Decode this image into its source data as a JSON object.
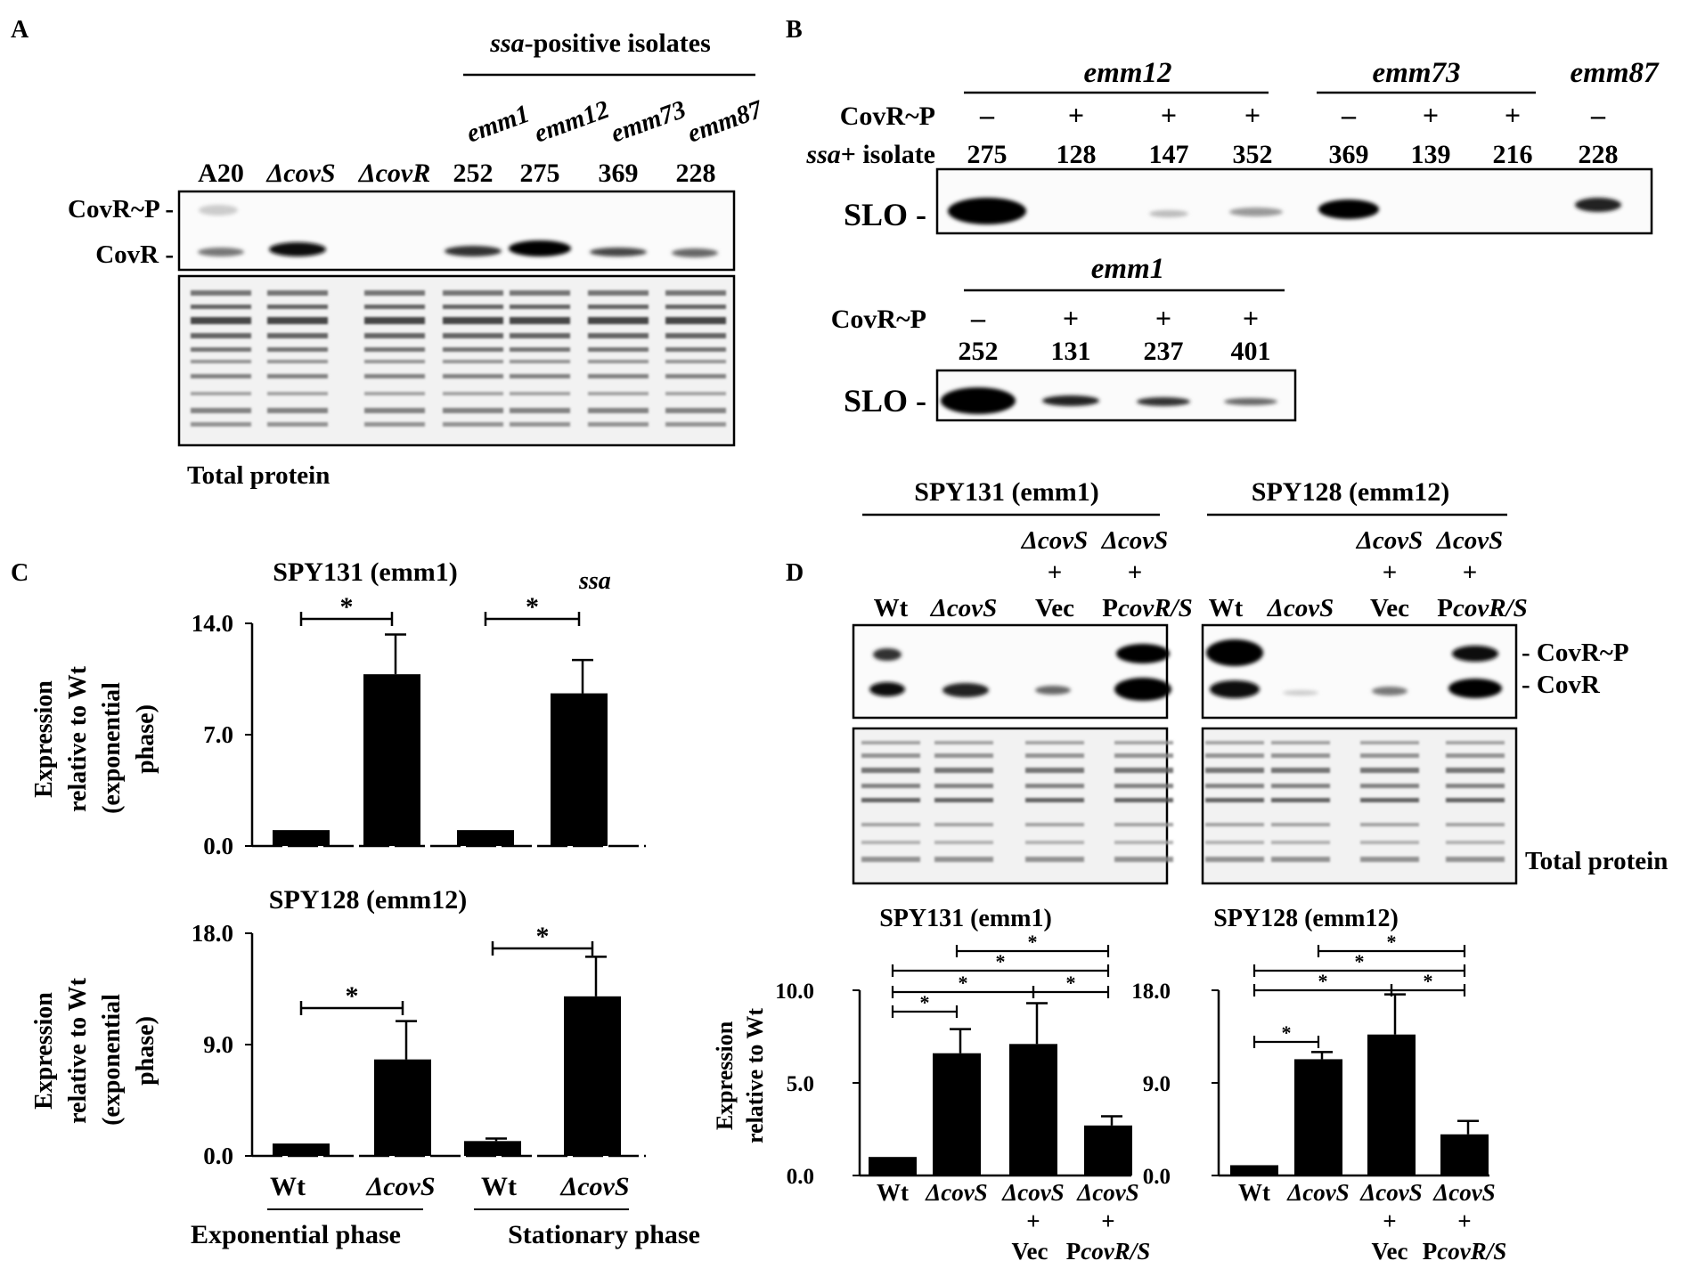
{
  "panels": {
    "A": {
      "letter": "A",
      "group_header": "ssa-positive isolates",
      "emm_labels": [
        "emm1",
        "emm12",
        "emm73",
        "emm87"
      ],
      "lanes": [
        "A20",
        "ΔcovS",
        "ΔcovR",
        "252",
        "275",
        "369",
        "228"
      ],
      "band_labels": [
        "CovR~P -",
        "CovR -"
      ],
      "total_protein_label": "Total protein"
    },
    "B": {
      "letter": "B",
      "row1_groups": [
        "emm12",
        "emm73",
        "emm87"
      ],
      "row1_covr_p": [
        "–",
        "+",
        "+",
        "+",
        "–",
        "+",
        "+",
        "–"
      ],
      "row1_isolates": [
        "275",
        "128",
        "147",
        "352",
        "369",
        "139",
        "216",
        "228"
      ],
      "row_label_covr": "CovR~P",
      "row_label_isolate": "ssa+ isolate",
      "slo_label": "SLO -",
      "row2_group": "emm1",
      "row2_covr_p": [
        "–",
        "+",
        "+",
        "+"
      ],
      "row2_isolates": [
        "252",
        "131",
        "237",
        "401"
      ]
    },
    "C": {
      "letter": "C",
      "gene_label": "ssa",
      "ylabel": [
        "Expression",
        "relative to Wt",
        "(exponential",
        "phase)"
      ],
      "x_groups": [
        "Wt",
        "ΔcovS",
        "Wt",
        "ΔcovS"
      ],
      "phases": [
        "Exponential phase",
        "Stationary phase"
      ],
      "significance": "*"
    },
    "D": {
      "letter": "D",
      "strains": [
        "SPY131 (emm1)",
        "SPY128 (emm12)"
      ],
      "lanes_top": [
        "ΔcovS",
        "ΔcovS"
      ],
      "plus": "+",
      "lanes": [
        "Wt",
        "ΔcovS",
        "Vec",
        "PcovR/S"
      ],
      "band_labels": [
        "- CovR~P",
        "- CovR"
      ],
      "total_protein_label": "Total protein",
      "ylabel": [
        "Expression",
        "relative to Wt"
      ],
      "x_groups": [
        "Wt",
        "ΔcovS",
        "ΔcovS",
        "ΔcovS"
      ],
      "x_sub_plus": [
        "+",
        "+"
      ],
      "x_sub_labels": [
        "Vec",
        "PcovR/S"
      ],
      "significance": "*"
    }
  },
  "chart_data": [
    {
      "type": "bar",
      "panel": "C",
      "title": "SPY131 (emm1)",
      "categories": [
        "Wt (Exponential phase)",
        "ΔcovS (Exponential phase)",
        "Wt (Stationary phase)",
        "ΔcovS (Stationary phase)"
      ],
      "values": [
        1.0,
        10.8,
        1.0,
        9.6
      ],
      "errors": [
        0.0,
        2.5,
        0.0,
        2.1
      ],
      "ylim": [
        0,
        14
      ],
      "yticks": [
        "0.0",
        "7.0",
        "14.0"
      ]
    },
    {
      "type": "bar",
      "panel": "C",
      "title": "SPY128 (emm12)",
      "categories": [
        "Wt (Exponential phase)",
        "ΔcovS (Exponential phase)",
        "Wt (Stationary phase)",
        "ΔcovS (Stationary phase)"
      ],
      "values": [
        1.0,
        7.8,
        1.2,
        12.9
      ],
      "errors": [
        0.0,
        3.1,
        0.2,
        3.2
      ],
      "ylim": [
        0,
        18
      ],
      "yticks": [
        "0.0",
        "9.0",
        "18.0"
      ]
    },
    {
      "type": "bar",
      "panel": "D",
      "title": "SPY131 (emm1)",
      "categories": [
        "Wt",
        "ΔcovS",
        "ΔcovS + Vec",
        "ΔcovS + PcovR/S"
      ],
      "values": [
        1.0,
        6.6,
        7.1,
        2.7
      ],
      "errors": [
        0.0,
        1.3,
        2.2,
        0.5
      ],
      "ylim": [
        0,
        10
      ],
      "yticks": [
        "0.0",
        "5.0",
        "10.0"
      ]
    },
    {
      "type": "bar",
      "panel": "D",
      "title": "SPY128 (emm12)",
      "categories": [
        "Wt",
        "ΔcovS",
        "ΔcovS + Vec",
        "ΔcovS + PcovR/S"
      ],
      "values": [
        1.0,
        11.3,
        13.7,
        4.0
      ],
      "errors": [
        0.0,
        0.7,
        3.9,
        1.3
      ],
      "ylim": [
        0,
        18
      ],
      "yticks": [
        "0.0",
        "9.0",
        "18.0"
      ]
    }
  ]
}
